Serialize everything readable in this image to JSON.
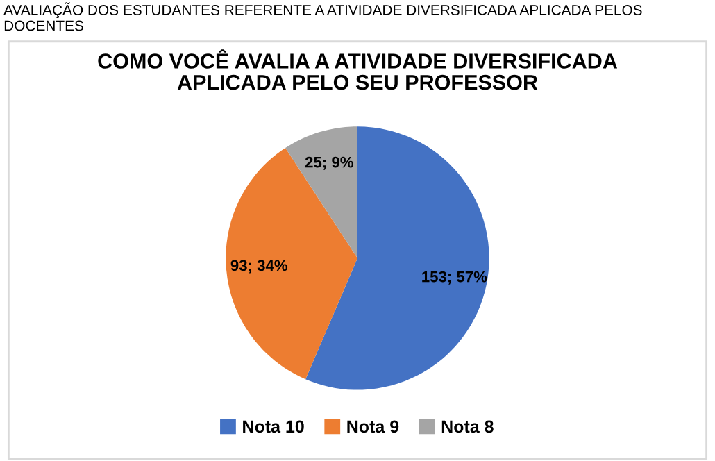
{
  "chart_data": {
    "type": "pie",
    "title": "COMO VOCÊ AVALIA A ATIVIDADE DIVERSIFICADA\nAPLICADA PELO SEU PROFESSOR",
    "annotations": [
      "AVALIAÇÃO DOS ESTUDANTES REFERENTE A ATIVIDADE DIVERSIFICADA APLICADA PELOS DOCENTES"
    ],
    "categories": [
      "Nota 10",
      "Nota 9",
      "Nota 8"
    ],
    "values": [
      153,
      93,
      25
    ],
    "value_labels": [
      "153; 57%",
      "93; 34%",
      "25; 9%"
    ],
    "colors": [
      "#4472c4",
      "#ed7d31",
      "#a5a5a5"
    ],
    "legend": "bottom"
  }
}
